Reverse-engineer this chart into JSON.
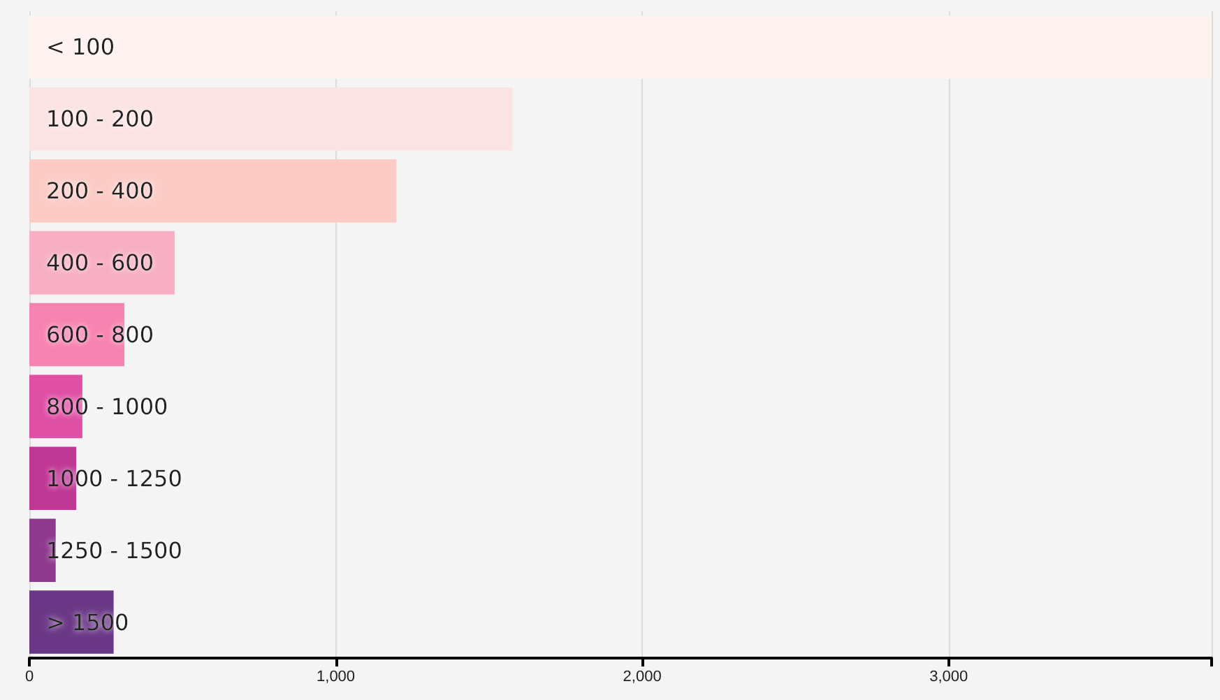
{
  "chart_data": {
    "type": "bar",
    "orientation": "horizontal",
    "categories": [
      "< 100",
      "100 - 200",
      "200 - 400",
      "400 - 600",
      "600 - 800",
      "800 - 1000",
      "1000 - 1250",
      "1250 - 1500",
      "> 1500"
    ],
    "values": [
      3858,
      1576,
      1198,
      474,
      310,
      173,
      153,
      86,
      275
    ],
    "colors": [
      "#fff2f0",
      "#fce3e3",
      "#fccbc6",
      "#f8aec3",
      "#f783b0",
      "#df4fa4",
      "#bf3894",
      "#8e3a8e",
      "#6b3887"
    ],
    "xlim": [
      0,
      3858
    ],
    "xticks": [
      0,
      {
        "value": 1000,
        "label": "1,000"
      },
      {
        "value": 2000,
        "label": "2,000"
      },
      {
        "value": 3000,
        "label": "3,000"
      },
      {
        "value": 3858,
        "label": null
      }
    ],
    "grid": "x"
  }
}
